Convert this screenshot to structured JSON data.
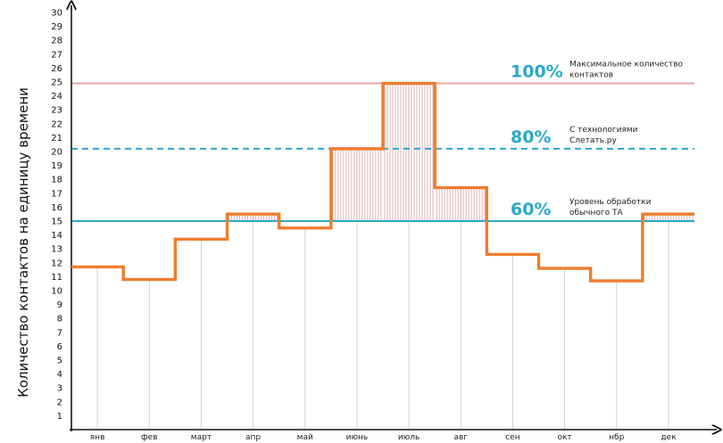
{
  "chart_data": {
    "type": "line",
    "ylabel": "Количество контактов на единицу времени",
    "xlabel": "",
    "ylim": [
      0,
      30
    ],
    "yticks": [
      1,
      2,
      3,
      4,
      5,
      6,
      7,
      8,
      9,
      10,
      11,
      12,
      13,
      14,
      15,
      16,
      17,
      18,
      19,
      20,
      21,
      22,
      23,
      24,
      25,
      26,
      27,
      28,
      29,
      30
    ],
    "categories": [
      "янв",
      "фев",
      "март",
      "апр",
      "май",
      "июнь",
      "июль",
      "авг",
      "сен",
      "окт",
      "нбр",
      "дек"
    ],
    "series": [
      {
        "values": [
          11.7,
          10.8,
          13.7,
          15.5,
          14.5,
          20.2,
          24.9,
          17.4,
          12.6,
          11.6,
          10.7,
          15.5
        ]
      }
    ],
    "reference_lines": [
      {
        "value": 24.9,
        "percent": "100%",
        "label_lines": [
          "Максимальное количество",
          "контактов"
        ],
        "style": "solid",
        "color": "#e6a3a0"
      },
      {
        "value": 20.2,
        "percent": "80%",
        "label_lines": [
          "С технологиями",
          "Слетать.ру"
        ],
        "style": "dashed",
        "color": "#2aa9c9"
      },
      {
        "value": 15.0,
        "percent": "60%",
        "label_lines": [
          "Уровень обработки",
          "обычного ТА"
        ],
        "style": "solid",
        "color": "#2aa9c9"
      }
    ],
    "highlight_above_reference": 15.0,
    "colors": {
      "series": "#ee7d2e",
      "hatch": "#d9a0a6",
      "gridline": "#d0d0d0",
      "axis": "#111111"
    }
  }
}
